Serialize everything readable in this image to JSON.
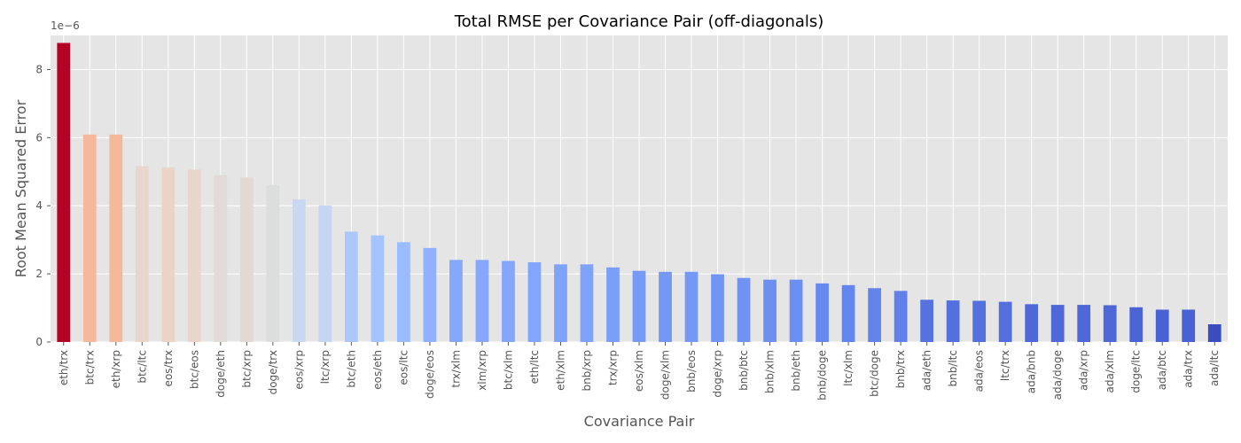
{
  "chart_data": {
    "type": "bar",
    "title": "Total RMSE per Covariance Pair (off-diagonals)",
    "xlabel": "Covariance Pair",
    "ylabel": "Root Mean Squared Error",
    "scale_label": "1e−6",
    "ylim": [
      0,
      9.0
    ],
    "yticks": [
      0,
      2,
      4,
      6,
      8
    ],
    "grid": true,
    "colormap": "coolwarm",
    "categories": [
      "eth/trx",
      "btc/trx",
      "eth/xrp",
      "btc/ltc",
      "eos/trx",
      "btc/eos",
      "doge/eth",
      "btc/xrp",
      "doge/trx",
      "eos/xrp",
      "ltc/xrp",
      "btc/eth",
      "eos/eth",
      "eos/ltc",
      "doge/eos",
      "trx/xlm",
      "xlm/xrp",
      "btc/xlm",
      "eth/ltc",
      "eth/xlm",
      "bnb/xrp",
      "trx/xrp",
      "eos/xlm",
      "doge/xlm",
      "bnb/eos",
      "doge/xrp",
      "bnb/btc",
      "bnb/xlm",
      "bnb/eth",
      "bnb/doge",
      "ltc/xlm",
      "btc/doge",
      "bnb/trx",
      "ada/eth",
      "bnb/ltc",
      "ada/eos",
      "ltc/trx",
      "ada/bnb",
      "ada/doge",
      "ada/xrp",
      "ada/xlm",
      "doge/ltc",
      "ada/btc",
      "ada/trx",
      "ada/ltc"
    ],
    "values": [
      8.78,
      6.09,
      6.09,
      5.16,
      5.13,
      5.06,
      4.9,
      4.83,
      4.61,
      4.19,
      4.01,
      3.24,
      3.13,
      2.93,
      2.76,
      2.41,
      2.41,
      2.38,
      2.34,
      2.28,
      2.28,
      2.19,
      2.09,
      2.06,
      2.06,
      1.99,
      1.88,
      1.83,
      1.83,
      1.72,
      1.67,
      1.58,
      1.5,
      1.24,
      1.22,
      1.21,
      1.18,
      1.11,
      1.09,
      1.09,
      1.08,
      1.02,
      0.95,
      0.95,
      0.52
    ],
    "colors": [
      "#b40426",
      "#f6b89c",
      "#f6b89c",
      "#e8d6cc",
      "#ead4c8",
      "#e8d6cc",
      "#e1dad6",
      "#e2d9d4",
      "#dcdddd",
      "#cad8ef",
      "#c5d6f2",
      "#abc8fd",
      "#a5c3fe",
      "#9abbff",
      "#90b2fe",
      "#85a8fc",
      "#85a8fc",
      "#84a7fc",
      "#82a6fb",
      "#80a3fa",
      "#80a3fa",
      "#7b9ff9",
      "#779af7",
      "#7597f6",
      "#7597f6",
      "#7295f4",
      "#6f92f3",
      "#6c8ff1",
      "#6c8ff1",
      "#6788ee",
      "#6485ec",
      "#6384eb",
      "#6180e9",
      "#5572df",
      "#5470de",
      "#5470de",
      "#536edd",
      "#4e68d8",
      "#4e68d8",
      "#4e68d8",
      "#4e68d8",
      "#4b64d5",
      "#4961d2",
      "#4961d2",
      "#3b4cc0"
    ]
  }
}
